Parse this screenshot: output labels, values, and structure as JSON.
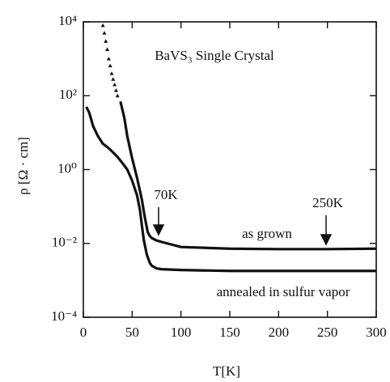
{
  "chart_data": {
    "type": "line",
    "annotations": [
      "BaVS₃ Single Crystal",
      "70K",
      "250K"
    ],
    "xlabel": "T[K]",
    "ylabel": "ρ [Ω · cm]",
    "log_y": true,
    "xlim": [
      0,
      300
    ],
    "xticks": [
      0,
      50,
      100,
      150,
      200,
      250,
      300
    ],
    "ylim": [
      0.0001,
      10000
    ],
    "yticks": [
      {
        "value": 0.0001,
        "label": "10⁻⁴"
      },
      {
        "value": 0.01,
        "label": "10⁻²"
      },
      {
        "value": 1,
        "label": "10⁰"
      },
      {
        "value": 100,
        "label": "10²"
      },
      {
        "value": 10000,
        "label": "10⁴"
      }
    ],
    "series": [
      {
        "name": "as grown",
        "color": "#111",
        "x": [
          38,
          42,
          45,
          50,
          55,
          60,
          63,
          66,
          68,
          70,
          75,
          80,
          100,
          150,
          200,
          250,
          300
        ],
        "values": [
          70,
          25,
          8,
          2,
          0.6,
          0.15,
          0.05,
          0.02,
          0.016,
          0.014,
          0.012,
          0.011,
          0.008,
          0.0072,
          0.007,
          0.007,
          0.0072
        ]
      },
      {
        "marker": "triangle",
        "color": "#111",
        "x": [
          20,
          21.5,
          23,
          24.5,
          26,
          27.5,
          29,
          30.5,
          32,
          33.5,
          35
        ],
        "values": [
          8000,
          5000,
          3000,
          1800,
          1000,
          650,
          400,
          280,
          200,
          140,
          100
        ]
      },
      {
        "name": "annealed in sulfur vapor",
        "color": "#111",
        "x": [
          3,
          6,
          10,
          15,
          20,
          25,
          30,
          35,
          40,
          45,
          50,
          55,
          58,
          60,
          62,
          65,
          68,
          70,
          75,
          80,
          100,
          150,
          200,
          250,
          300
        ],
        "values": [
          50,
          35,
          15,
          8,
          5,
          4,
          3,
          2.2,
          1.5,
          1,
          0.5,
          0.2,
          0.08,
          0.03,
          0.012,
          0.005,
          0.003,
          0.0025,
          0.0021,
          0.002,
          0.0019,
          0.0018,
          0.0018,
          0.0018,
          0.0018
        ]
      }
    ]
  }
}
